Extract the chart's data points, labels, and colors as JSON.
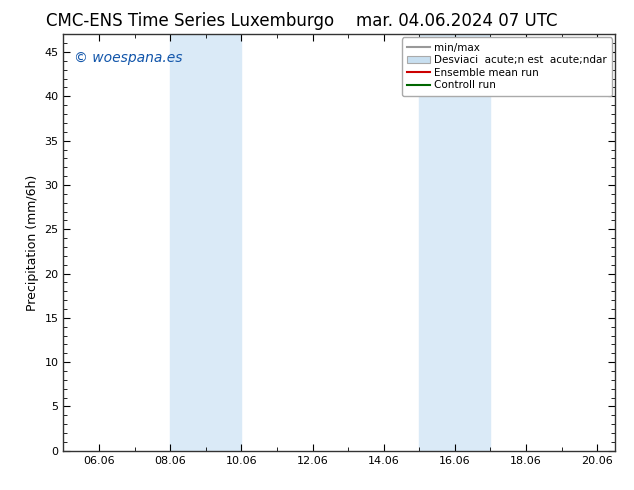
{
  "title_left": "CMC-ENS Time Series Luxemburgo",
  "title_right": "mar. 04.06.2024 07 UTC",
  "ylabel": "Precipitation (mm/6h)",
  "watermark": "© woespana.es",
  "ylim": [
    0,
    47
  ],
  "yticks": [
    0,
    5,
    10,
    15,
    20,
    25,
    30,
    35,
    40,
    45
  ],
  "xlim_start": 5.0,
  "xlim_end": 20.5,
  "xtick_labels": [
    "06.06",
    "08.06",
    "10.06",
    "12.06",
    "14.06",
    "16.06",
    "18.06",
    "20.06"
  ],
  "xtick_positions": [
    6.0,
    8.0,
    10.0,
    12.0,
    14.0,
    16.0,
    18.0,
    20.0
  ],
  "shaded_regions": [
    {
      "xmin": 8.0,
      "xmax": 10.0,
      "color": "#daeaf7"
    },
    {
      "xmin": 15.0,
      "xmax": 17.0,
      "color": "#daeaf7"
    }
  ],
  "background_color": "#ffffff",
  "plot_bg_color": "#ffffff",
  "legend_min_max_color": "#999999",
  "legend_std_facecolor": "#c8dff0",
  "legend_std_edgecolor": "#aaaaaa",
  "legend_ensemble_color": "#cc0000",
  "legend_control_color": "#006600",
  "title_fontsize": 12,
  "watermark_color": "#1155aa",
  "watermark_fontsize": 10,
  "axis_label_fontsize": 9,
  "tick_fontsize": 8,
  "legend_fontsize": 7.5,
  "legend_labels": [
    "min/max",
    "Desviaci  acute;n est  acute;ndar",
    "Ensemble mean run",
    "Controll run"
  ]
}
